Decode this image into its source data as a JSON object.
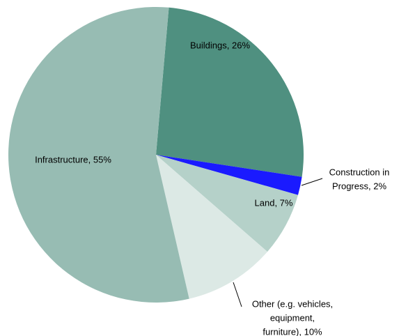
{
  "chart_data": {
    "type": "pie",
    "values": [
      26,
      2,
      7,
      10,
      55
    ],
    "value_labels": [
      [
        "Buildings, 26%"
      ],
      [
        "Construction in",
        "Progress, 2%"
      ],
      [
        "Land, 7%"
      ],
      [
        "Other (e.g. vehicles,",
        "equipment,",
        "furniture), 10%"
      ],
      [
        "Infrastructure, 55%"
      ]
    ],
    "colors": [
      "#4f9080",
      "#1a1aff",
      "#b5d1c9",
      "#dce9e5",
      "#97bcb3"
    ]
  }
}
